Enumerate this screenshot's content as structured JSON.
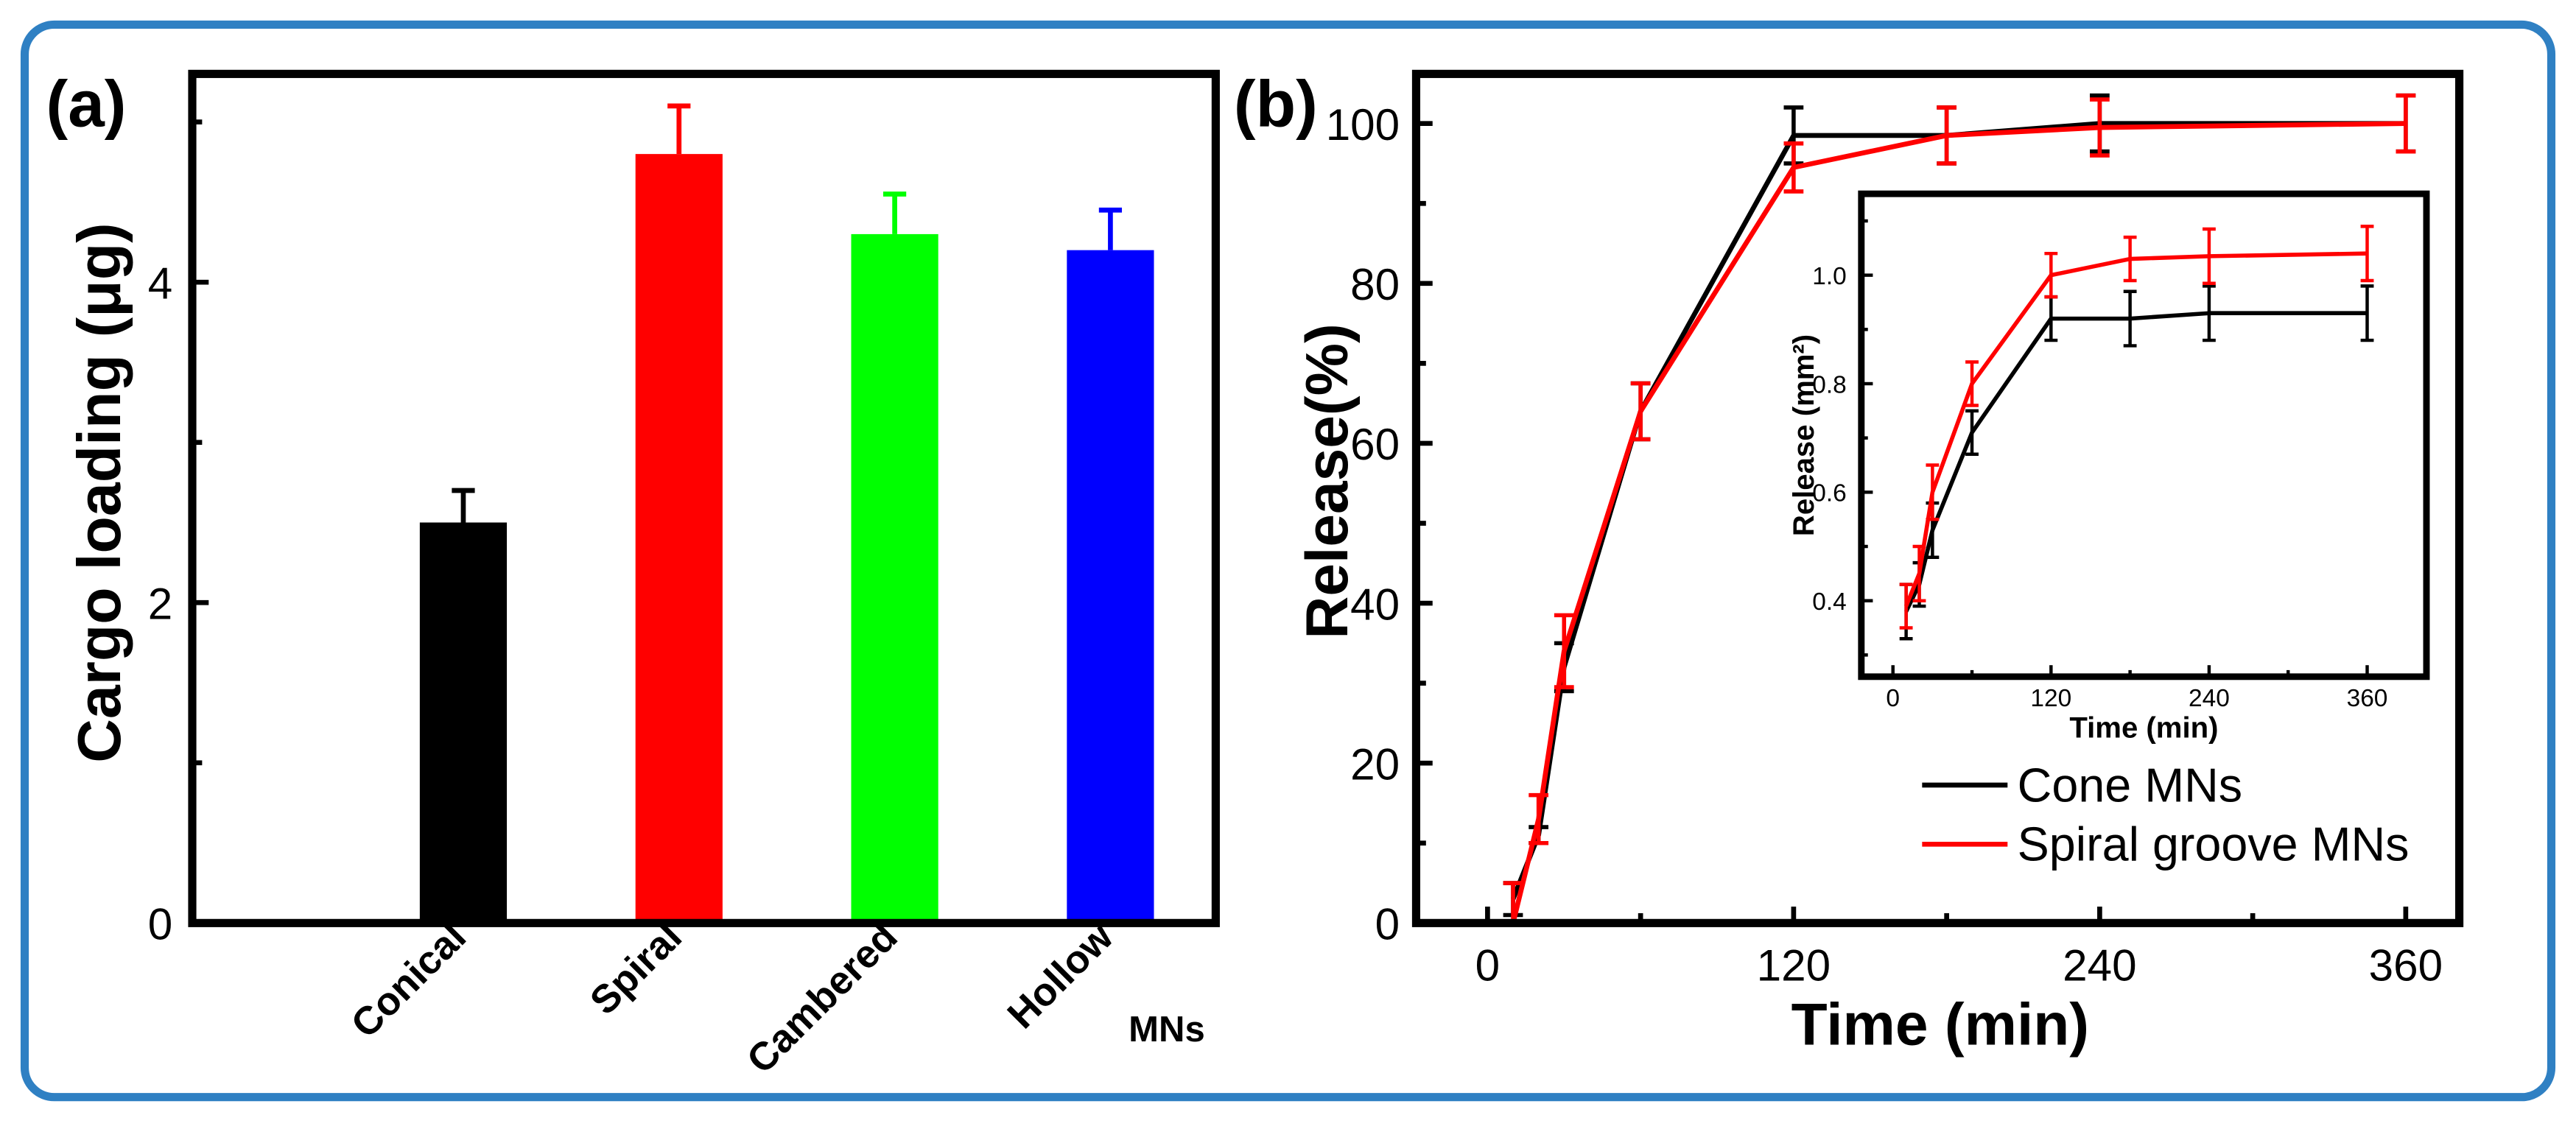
{
  "figure": {
    "border_color": "#2f80c3"
  },
  "chart_data": [
    {
      "type": "bar",
      "panel_label": "(a)",
      "categories": [
        "Conical",
        "Spiral",
        "Cambered",
        "Hollow"
      ],
      "values": [
        2.5,
        4.8,
        4.3,
        4.2
      ],
      "errors": [
        0.2,
        0.3,
        0.25,
        0.25
      ],
      "colors": [
        "#000000",
        "#ff0000",
        "#00ff00",
        "#0000ff"
      ],
      "xlabel": "MNs",
      "ylabel": "Cargo loading (μg)",
      "ylim": [
        0,
        5.3
      ],
      "yticks": [
        "0",
        "2",
        "4"
      ],
      "grid": false
    },
    {
      "type": "line",
      "panel_label": "(b)",
      "xlabel": "Time (min)",
      "ylabel": "Release(%)",
      "xlim": [
        -28,
        381
      ],
      "ylim": [
        0,
        106.2
      ],
      "xticks": [
        "0",
        "120",
        "240",
        "360"
      ],
      "yticks": [
        "0",
        "20",
        "40",
        "60",
        "80",
        "100"
      ],
      "legend": "lower-right",
      "grid": false,
      "series": [
        {
          "name": "Cone MNs",
          "color": "#000000",
          "x": [
            10,
            20,
            30,
            60,
            120,
            180,
            240,
            360
          ],
          "y": [
            3,
            11,
            32,
            64,
            98.5,
            98.5,
            100,
            100
          ],
          "err": [
            2,
            1,
            3,
            3.5,
            3.5,
            3.5,
            3.5,
            3.5
          ]
        },
        {
          "name": "Spiral groove MNs",
          "color": "#ff0000",
          "x": [
            10,
            20,
            30,
            60,
            120,
            180,
            240,
            360
          ],
          "y": [
            0,
            13,
            34,
            64,
            94.5,
            98.5,
            99.5,
            100
          ],
          "err": [
            5,
            3,
            4.5,
            3.5,
            3,
            3.5,
            3.5,
            3.5
          ]
        }
      ],
      "inset": {
        "type": "line",
        "xlabel": "Time (min)",
        "ylabel": "Release (mm²)",
        "xlim": [
          -24,
          405
        ],
        "ylim": [
          0.26,
          1.15
        ],
        "xticks": [
          "0",
          "120",
          "240",
          "360"
        ],
        "yticks": [
          "0.4",
          "0.6",
          "0.8",
          "1.0"
        ],
        "grid": false,
        "series": [
          {
            "color": "#000000",
            "x": [
              10,
              20,
              30,
              60,
              120,
              180,
              240,
              360
            ],
            "y": [
              0.38,
              0.43,
              0.53,
              0.71,
              0.92,
              0.92,
              0.93,
              0.93
            ],
            "err": [
              0.05,
              0.04,
              0.05,
              0.04,
              0.04,
              0.05,
              0.05,
              0.05
            ]
          },
          {
            "color": "#ff0000",
            "x": [
              10,
              20,
              30,
              60,
              120,
              180,
              240,
              360
            ],
            "y": [
              0.39,
              0.45,
              0.6,
              0.8,
              1.0,
              1.03,
              1.035,
              1.04
            ],
            "err": [
              0.04,
              0.05,
              0.05,
              0.04,
              0.04,
              0.04,
              0.05,
              0.05
            ]
          }
        ]
      }
    }
  ]
}
